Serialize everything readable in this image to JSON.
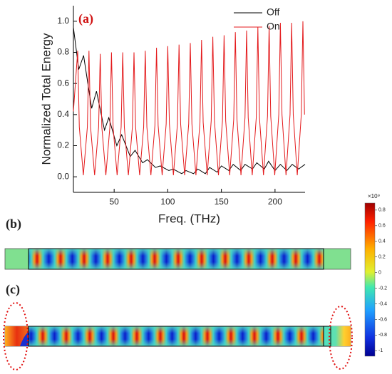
{
  "chart_data": {
    "type": "line",
    "xlabel": "Freq. (THz)",
    "ylabel": "Normalized Total Energy",
    "xlim": [
      12,
      228
    ],
    "xticks": [
      50,
      100,
      150,
      200
    ],
    "ylim": [
      -0.1,
      1.1
    ],
    "yticks": [
      {
        "value": 0,
        "label": "0.0"
      },
      0.2,
      0.4,
      0.6,
      0.8,
      {
        "value": 1,
        "label": "1.0"
      }
    ],
    "legend": "upper right",
    "series": [
      {
        "name": "Off",
        "color": "#000000",
        "x": [
          12,
          17,
          21.5,
          29,
          33.5,
          41,
          45,
          52.5,
          57,
          65,
          69.5,
          76.5,
          81,
          88.5,
          93,
          101,
          105,
          113,
          117,
          124,
          128,
          135,
          139,
          146,
          150,
          157,
          161,
          168,
          172,
          179,
          183,
          190,
          194,
          200,
          205,
          211,
          216,
          222,
          228
        ],
        "values": [
          0.96,
          0.69,
          0.78,
          0.44,
          0.55,
          0.3,
          0.38,
          0.2,
          0.27,
          0.13,
          0.17,
          0.09,
          0.11,
          0.06,
          0.07,
          0.04,
          0.05,
          0.02,
          0.04,
          0.02,
          0.05,
          0.02,
          0.06,
          0.03,
          0.07,
          0.04,
          0.08,
          0.04,
          0.08,
          0.05,
          0.09,
          0.05,
          0.1,
          0.04,
          0.08,
          0.04,
          0.08,
          0.05,
          0.08
        ]
      },
      {
        "name": "On",
        "color": "#e41a1c",
        "x": [
          12,
          16,
          17.5,
          21.25,
          25,
          26.5,
          28,
          31.75,
          35.5,
          37,
          38.5,
          42.25,
          46,
          47.5,
          49,
          52.75,
          56.5,
          58,
          59.5,
          63.25,
          67,
          68.5,
          70,
          73.75,
          77.5,
          79,
          80.5,
          84.25,
          88,
          89.5,
          91,
          94.75,
          98.5,
          100,
          101.5,
          105.25,
          109,
          110.5,
          112,
          115.75,
          119.5,
          121,
          122.5,
          126.25,
          130,
          131.5,
          133,
          136.75,
          140.5,
          142,
          143.5,
          147.25,
          151,
          152.5,
          154,
          157.75,
          161.5,
          163,
          164.5,
          168.25,
          172,
          173.5,
          175,
          178.75,
          182.5,
          184,
          185.5,
          189.25,
          193,
          194.5,
          196,
          199.75,
          203.5,
          205,
          206.5,
          210.25,
          214,
          215.5,
          217,
          220.75,
          224.5,
          226,
          227.5
        ],
        "values": [
          0.42,
          0.81,
          0.32,
          0.01,
          0.32,
          0.81,
          0.32,
          0.01,
          0.32,
          0.79,
          0.32,
          0.01,
          0.32,
          0.8,
          0.32,
          0.01,
          0.32,
          0.8,
          0.32,
          0.01,
          0.32,
          0.8,
          0.32,
          0.01,
          0.32,
          0.81,
          0.32,
          0.01,
          0.33,
          0.83,
          0.33,
          0.01,
          0.34,
          0.84,
          0.34,
          0.01,
          0.34,
          0.85,
          0.34,
          0.01,
          0.34,
          0.86,
          0.34,
          0.01,
          0.35,
          0.88,
          0.35,
          0.01,
          0.36,
          0.9,
          0.36,
          0.01,
          0.36,
          0.91,
          0.36,
          0.01,
          0.37,
          0.93,
          0.37,
          0.01,
          0.38,
          0.94,
          0.38,
          0.01,
          0.38,
          0.96,
          0.38,
          0.01,
          0.39,
          0.97,
          0.39,
          0.01,
          0.4,
          0.99,
          0.4,
          0.01,
          0.4,
          0.99,
          0.4,
          0.01,
          0.4,
          1.0,
          0.4
        ]
      }
    ]
  },
  "panel_labels": [
    "(a)",
    "(b)",
    "(c)"
  ],
  "colorbar": {
    "label": "×10⁹",
    "lim": [
      -1.07,
      0.89
    ],
    "ticks": [
      0.8,
      0.6,
      0.4,
      0.2,
      0,
      -0.2,
      -0.4,
      -0.6,
      -0.8,
      -1
    ]
  }
}
